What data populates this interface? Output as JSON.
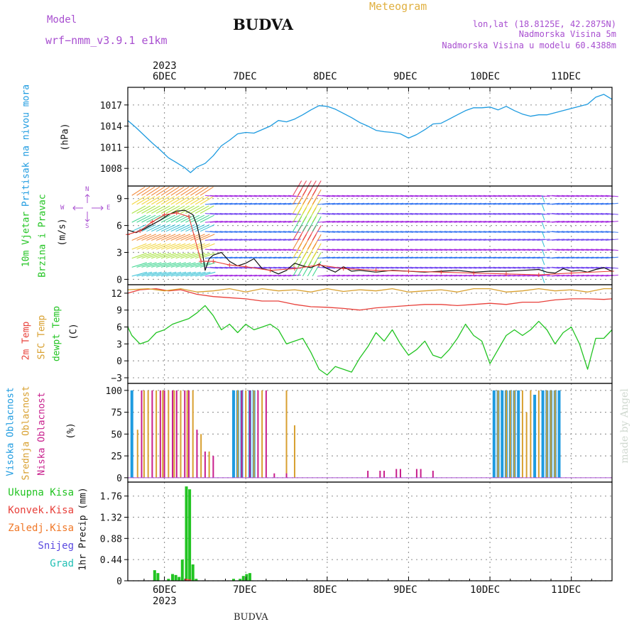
{
  "header": {
    "model_label": "Model",
    "model_name": "wrf−nmm_v3.9.1  e1km",
    "title": "BUDVA",
    "product": "Meteogram",
    "lonlat": "lon,lat (18.8125E, 42.2875N)",
    "altitude": "Nadmorska Visina 5m",
    "model_altitude": "Nadmorska Visina u modelu 60.4388m"
  },
  "footer": {
    "station": "BUDVA"
  },
  "watermark": "made by Angel",
  "x_axis": {
    "day_labels": [
      "6DEC",
      "7DEC",
      "8DEC",
      "9DEC",
      "10DEC",
      "11DEC"
    ],
    "year": "2023",
    "x_range_days": [
      5.55,
      11.5
    ]
  },
  "colors": {
    "pressure": "#1e9be0",
    "temp2m": "#e8403a",
    "sfc_temp": "#d8a030",
    "dewpt": "#22c422",
    "high_cloud": "#1e9be0",
    "mid_cloud": "#d8a030",
    "low_cloud": "#c81e8c",
    "total_precip": "#22c422",
    "conv_precip": "#e8403a",
    "freezing": "#f07828",
    "snow": "#5a4ae0",
    "hail": "#22c0b4",
    "wind_speed": "#111111",
    "wind_gust": "#e8403a"
  },
  "chart_data": [
    {
      "type": "line",
      "panel": "pressure",
      "ylabel_side": "Pritisak na nivou mora",
      "unit": "(hPa)",
      "yticks": [
        1008,
        1011,
        1014,
        1017
      ],
      "ylim": [
        1005.5,
        1019.5
      ],
      "series": [
        {
          "x": [
            5.55,
            5.65,
            5.75,
            5.85,
            5.95,
            6.05,
            6.15,
            6.25,
            6.32,
            6.4,
            6.5,
            6.6,
            6.7,
            6.8,
            6.9,
            7.0,
            7.1,
            7.2,
            7.3,
            7.4,
            7.5,
            7.6,
            7.7,
            7.8,
            7.9,
            8.0,
            8.1,
            8.2,
            8.3,
            8.4,
            8.5,
            8.6,
            8.7,
            8.8,
            8.9,
            9.0,
            9.1,
            9.2,
            9.3,
            9.4,
            9.5,
            9.6,
            9.7,
            9.8,
            9.9,
            10.0,
            10.1,
            10.2,
            10.3,
            10.4,
            10.5,
            10.6,
            10.7,
            10.8,
            10.9,
            11.0,
            11.1,
            11.2,
            11.3,
            11.4,
            11.5
          ],
          "values": [
            1014.8,
            1013.8,
            1012.7,
            1011.6,
            1010.6,
            1009.5,
            1008.8,
            1008.1,
            1007.4,
            1008.2,
            1008.7,
            1009.8,
            1011.2,
            1012.0,
            1012.9,
            1013.1,
            1013.0,
            1013.5,
            1014.0,
            1014.8,
            1014.6,
            1015.0,
            1015.6,
            1016.3,
            1016.9,
            1016.8,
            1016.4,
            1015.8,
            1015.2,
            1014.5,
            1014.0,
            1013.4,
            1013.2,
            1013.1,
            1012.9,
            1012.3,
            1012.8,
            1013.5,
            1014.3,
            1014.4,
            1015.0,
            1015.6,
            1016.2,
            1016.6,
            1016.6,
            1016.7,
            1016.3,
            1016.8,
            1016.2,
            1015.7,
            1015.4,
            1015.6,
            1015.6,
            1015.9,
            1016.2,
            1016.5,
            1016.8,
            1017.1,
            1018.1,
            1018.5,
            1017.8
          ]
        }
      ]
    },
    {
      "type": "line",
      "panel": "wind",
      "ylabel_side": [
        "10m Vjetar",
        "Brzina i Pravac"
      ],
      "unit": "(m/s)",
      "compass": {
        "north": "N",
        "south": "S",
        "west": "W",
        "east": "E"
      },
      "yticks": [
        0,
        3,
        6,
        9
      ],
      "ylim": [
        -0.6,
        10.4
      ],
      "speed": {
        "x": [
          5.55,
          5.65,
          5.75,
          5.85,
          5.95,
          6.05,
          6.15,
          6.25,
          6.35,
          6.4,
          6.45,
          6.5,
          6.55,
          6.6,
          6.7,
          6.8,
          6.9,
          7.0,
          7.1,
          7.2,
          7.3,
          7.4,
          7.5,
          7.6,
          7.7,
          7.8,
          7.9,
          8.0,
          8.1,
          8.2,
          8.3,
          8.4,
          8.6,
          8.8,
          9.0,
          9.2,
          9.4,
          9.6,
          9.8,
          10.0,
          10.2,
          10.4,
          10.6,
          10.7,
          10.8,
          10.9,
          11.0,
          11.1,
          11.2,
          11.3,
          11.4,
          11.5
        ],
        "values": [
          5.5,
          5.2,
          5.6,
          6.1,
          6.6,
          7.2,
          7.6,
          7.7,
          7.2,
          6.0,
          4.0,
          1.0,
          2.3,
          2.7,
          3.0,
          2.0,
          1.5,
          1.8,
          2.3,
          1.2,
          1.0,
          0.6,
          1.0,
          1.8,
          1.5,
          1.3,
          1.7,
          1.2,
          0.8,
          1.4,
          0.9,
          1.0,
          0.8,
          1.0,
          0.9,
          0.8,
          0.9,
          1.0,
          0.8,
          0.9,
          0.9,
          1.0,
          1.1,
          0.8,
          0.7,
          1.2,
          0.9,
          1.0,
          0.8,
          1.1,
          1.3,
          0.9
        ]
      },
      "gust": {
        "x": [
          5.55,
          5.7,
          5.85,
          6.0,
          6.15,
          6.3,
          6.45,
          6.6,
          6.8,
          7.0,
          7.3,
          7.6,
          7.9,
          8.2,
          8.6,
          9.0,
          9.4,
          9.8,
          10.2,
          10.6,
          11.0,
          11.5
        ],
        "values": [
          5.0,
          5.4,
          6.4,
          7.2,
          7.4,
          7.0,
          2.0,
          2.0,
          1.6,
          1.4,
          1.0,
          1.2,
          1.6,
          1.2,
          1.0,
          0.9,
          0.8,
          0.7,
          0.6,
          0.5,
          0.7,
          0.9
        ]
      }
    },
    {
      "type": "line",
      "panel": "temperature",
      "ylabel_side": [
        "2m Temp",
        "SFC Temp",
        "dewpt Temp"
      ],
      "unit": "(C)",
      "yticks": [
        -3,
        0,
        3,
        6,
        9,
        12
      ],
      "ylim": [
        -4,
        13.5
      ],
      "series": [
        {
          "name": "2m Temp",
          "x": [
            5.55,
            5.7,
            5.9,
            6.05,
            6.2,
            6.4,
            6.6,
            6.8,
            7.0,
            7.2,
            7.4,
            7.6,
            7.8,
            8.0,
            8.2,
            8.4,
            8.6,
            8.8,
            9.0,
            9.2,
            9.4,
            9.6,
            9.8,
            10.0,
            10.2,
            10.4,
            10.6,
            10.8,
            11.0,
            11.2,
            11.4,
            11.5
          ],
          "values": [
            12.0,
            12.6,
            12.8,
            12.4,
            12.6,
            11.8,
            11.4,
            11.2,
            11.0,
            10.6,
            10.6,
            10.0,
            9.6,
            9.5,
            9.3,
            9.0,
            9.4,
            9.6,
            9.8,
            10.0,
            10.0,
            9.8,
            10.0,
            10.2,
            10.0,
            10.4,
            10.4,
            10.8,
            11.0,
            11.0,
            10.9,
            11.0
          ]
        },
        {
          "name": "SFC Temp",
          "x": [
            5.55,
            5.8,
            6.0,
            6.2,
            6.4,
            6.6,
            6.8,
            7.0,
            7.2,
            7.4,
            7.6,
            7.8,
            8.0,
            8.2,
            8.4,
            8.6,
            8.8,
            9.0,
            9.2,
            9.4,
            9.6,
            9.8,
            10.0,
            10.2,
            10.4,
            10.6,
            10.8,
            11.0,
            11.2,
            11.4,
            11.5
          ],
          "values": [
            12.6,
            12.8,
            12.4,
            12.8,
            12.2,
            12.4,
            12.8,
            12.2,
            12.8,
            12.4,
            12.6,
            12.2,
            12.8,
            12.3,
            12.6,
            12.4,
            12.8,
            12.2,
            12.4,
            12.6,
            12.2,
            12.8,
            12.8,
            12.2,
            12.4,
            12.8,
            12.4,
            12.6,
            12.2,
            12.8,
            12.8
          ]
        },
        {
          "name": "dewpt Temp",
          "x": [
            5.55,
            5.6,
            5.7,
            5.8,
            5.9,
            6.0,
            6.1,
            6.2,
            6.3,
            6.4,
            6.5,
            6.6,
            6.7,
            6.8,
            6.9,
            7.0,
            7.1,
            7.2,
            7.3,
            7.4,
            7.5,
            7.6,
            7.7,
            7.8,
            7.9,
            8.0,
            8.1,
            8.2,
            8.3,
            8.4,
            8.5,
            8.6,
            8.7,
            8.8,
            8.9,
            9.0,
            9.1,
            9.2,
            9.3,
            9.4,
            9.5,
            9.6,
            9.7,
            9.8,
            9.9,
            10.0,
            10.1,
            10.2,
            10.3,
            10.4,
            10.5,
            10.6,
            10.7,
            10.8,
            10.9,
            11.0,
            11.1,
            11.2,
            11.3,
            11.4,
            11.5
          ],
          "values": [
            6.0,
            4.5,
            3.0,
            3.5,
            5.0,
            5.5,
            6.5,
            7.0,
            7.5,
            8.5,
            9.8,
            8.0,
            5.5,
            6.5,
            5.0,
            6.5,
            5.5,
            6.0,
            6.5,
            5.5,
            3.0,
            3.5,
            4.0,
            1.5,
            -1.5,
            -2.5,
            -1.0,
            -1.5,
            -2.0,
            0.5,
            2.5,
            5.0,
            3.5,
            5.5,
            3.0,
            1.0,
            2.0,
            3.5,
            1.0,
            0.5,
            2.0,
            4.0,
            6.5,
            4.5,
            3.5,
            -0.5,
            2.0,
            4.5,
            5.5,
            4.5,
            5.5,
            7.0,
            5.5,
            3.0,
            5.0,
            6.0,
            3.0,
            -1.5,
            4.0,
            4.0,
            5.5
          ]
        }
      ]
    },
    {
      "type": "bar",
      "panel": "cloud_cover",
      "ylabel_side": [
        "Visoka Oblacnost",
        "Srednja Oblacnost",
        "Niska Oblacnost"
      ],
      "unit": "(%)",
      "yticks": [
        0,
        25,
        50,
        75,
        100
      ],
      "ylim": [
        -5,
        108
      ],
      "series": [
        {
          "name": "Visoka Oblacnost",
          "x": [
            5.6,
            6.85,
            6.9,
            6.95,
            7.05,
            7.1,
            10.05,
            10.1,
            10.15,
            10.2,
            10.25,
            10.3,
            10.35,
            10.55,
            10.65,
            10.7,
            10.75,
            10.8,
            10.85
          ],
          "values": [
            100,
            100,
            100,
            100,
            100,
            100,
            100,
            100,
            100,
            100,
            100,
            100,
            100,
            95,
            100,
            100,
            100,
            100,
            100
          ]
        },
        {
          "name": "Srednja Oblacnost",
          "x": [
            5.67,
            5.75,
            5.8,
            5.9,
            5.98,
            6.05,
            6.12,
            6.2,
            6.28,
            6.35,
            6.45,
            6.55,
            6.9,
            7.0,
            7.1,
            7.2,
            7.5,
            7.6,
            10.1,
            10.2,
            10.25,
            10.3,
            10.4,
            10.45,
            10.5,
            10.6,
            10.7,
            10.75,
            10.8
          ],
          "values": [
            55,
            100,
            100,
            100,
            100,
            100,
            100,
            100,
            100,
            100,
            50,
            30,
            100,
            100,
            100,
            100,
            100,
            60,
            100,
            100,
            100,
            100,
            100,
            75,
            100,
            100,
            100,
            100,
            100
          ]
        },
        {
          "name": "Niska Oblacnost",
          "x": [
            5.72,
            5.85,
            5.95,
            6.0,
            6.1,
            6.15,
            6.25,
            6.3,
            6.4,
            6.5,
            6.6,
            6.95,
            7.05,
            7.15,
            7.25,
            7.35,
            7.5,
            8.5,
            8.65,
            8.7,
            8.85,
            8.9,
            9.1,
            9.15,
            9.3
          ],
          "values": [
            100,
            100,
            100,
            100,
            100,
            100,
            100,
            100,
            55,
            30,
            25,
            100,
            100,
            100,
            100,
            5,
            5,
            8,
            8,
            8,
            10,
            10,
            10,
            10,
            8
          ]
        }
      ]
    },
    {
      "type": "bar",
      "panel": "precipitation",
      "ylabel_side": "1hr Precip (mm)",
      "legend": [
        "Ukupna Kisa",
        "Konvek.Kisa",
        "Zaledj.Kisa",
        "Snijeg",
        "Grad"
      ],
      "yticks": [
        0,
        0.44,
        0.88,
        1.32,
        1.76
      ],
      "ylim": [
        0,
        2.05
      ],
      "series": [
        {
          "name": "Ukupna Kisa",
          "x": [
            5.88,
            5.92,
            6.05,
            6.1,
            6.14,
            6.18,
            6.22,
            6.27,
            6.31,
            6.35,
            6.39,
            6.85,
            6.93,
            6.97,
            7.01,
            7.05
          ],
          "values": [
            0.22,
            0.16,
            0.04,
            0.14,
            0.12,
            0.08,
            0.44,
            1.96,
            1.9,
            0.34,
            0.04,
            0.04,
            0.04,
            0.1,
            0.14,
            0.16
          ]
        },
        {
          "name": "Konvek.Kisa",
          "x": [
            6.27,
            6.31
          ],
          "values": [
            0.04,
            0.03
          ]
        }
      ]
    }
  ]
}
